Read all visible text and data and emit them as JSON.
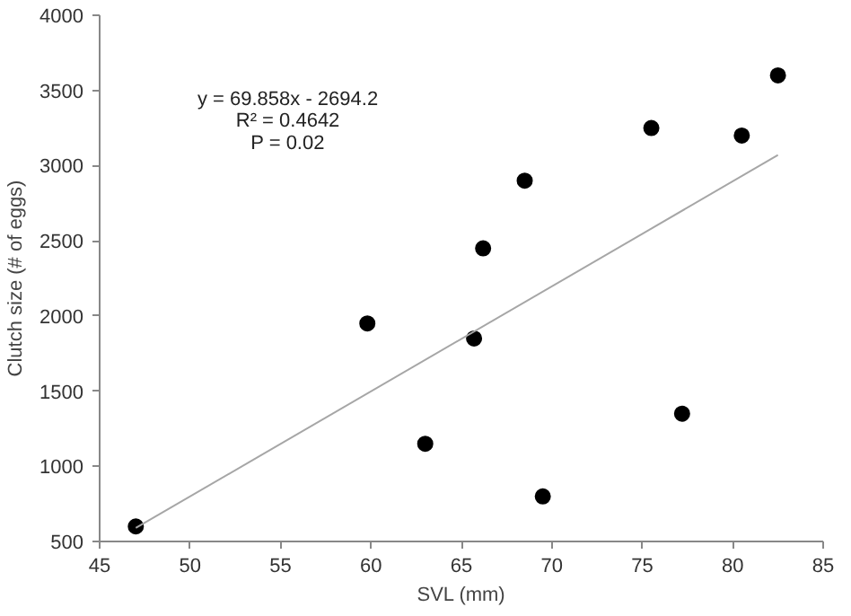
{
  "chart_data": {
    "type": "scatter",
    "xlabel": "SVL (mm)",
    "ylabel": "Clutch size (# of eggs)",
    "x": [
      47,
      59.8,
      63,
      65.7,
      66.2,
      68.5,
      69.5,
      75.5,
      77.2,
      80.5,
      82.5
    ],
    "series": [
      {
        "color": "#000000",
        "marker": "circle",
        "values": [
          600,
          1950,
          1150,
          1850,
          2450,
          2900,
          800,
          3250,
          1350,
          3200,
          3600
        ]
      },
      {
        "type": "line",
        "marker": "none",
        "color": "#a6a6a6",
        "x": [
          47,
          82.5
        ],
        "values": [
          590,
          3070
        ]
      }
    ],
    "xlim": [
      45,
      85
    ],
    "xticks": [
      45,
      50,
      55,
      60,
      65,
      70,
      75,
      80,
      85
    ],
    "ylim": [
      500,
      4000
    ],
    "yticks": [
      500,
      1000,
      1500,
      2000,
      2500,
      3000,
      3500,
      4000
    ],
    "annotations": [
      "y = 69.858x - 2694.2",
      "R² = 0.4642",
      "P = 0.02"
    ],
    "grid": false
  }
}
